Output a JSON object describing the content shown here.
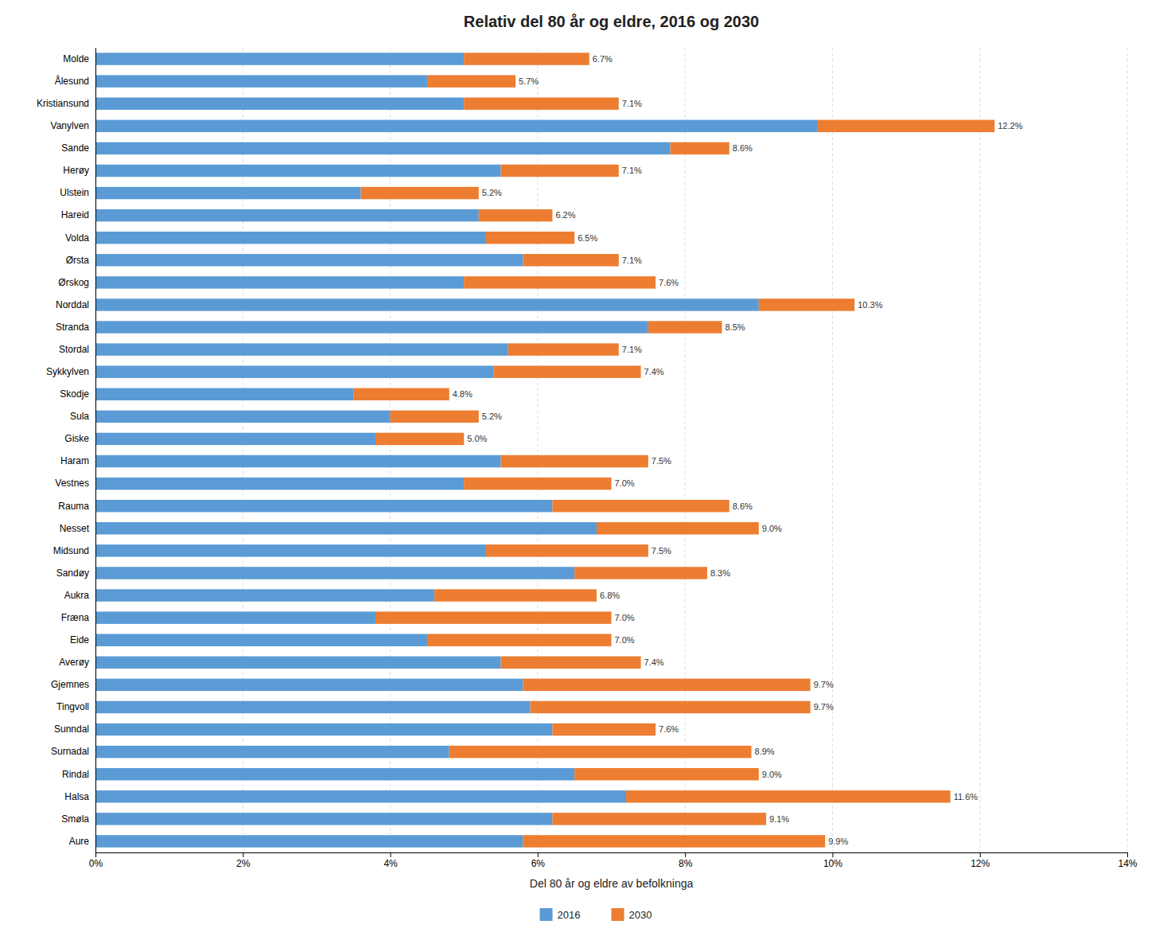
{
  "chart_data": {
    "type": "bar",
    "orientation": "horizontal",
    "stacked": true,
    "title": "Relativ del 80 år og eldre, 2016 og 2030",
    "xlabel": "Del 80 år og eldre av befolkninga",
    "categories": [
      "Molde",
      "Ålesund",
      "Kristiansund",
      "Vanylven",
      "Sande",
      "Herøy",
      "Ulstein",
      "Hareid",
      "Volda",
      "Ørsta",
      "Ørskog",
      "Norddal",
      "Stranda",
      "Stordal",
      "Sykkylven",
      "Skodje",
      "Sula",
      "Giske",
      "Haram",
      "Vestnes",
      "Rauma",
      "Nesset",
      "Midsund",
      "Sandøy",
      "Aukra",
      "Fræna",
      "Eide",
      "Averøy",
      "Gjemnes",
      "Tingvoll",
      "Sunndal",
      "Surnadal",
      "Rindal",
      "Halsa",
      "Smøla",
      "Aure"
    ],
    "series": [
      {
        "name": "2016",
        "color": "#5B9BD5",
        "values": [
          5.0,
          4.5,
          5.0,
          9.8,
          7.8,
          5.5,
          3.6,
          5.2,
          5.3,
          5.8,
          5.0,
          9.0,
          7.5,
          5.6,
          5.4,
          3.5,
          4.0,
          3.8,
          5.5,
          5.0,
          6.2,
          6.8,
          5.3,
          6.5,
          4.6,
          3.8,
          4.5,
          5.5,
          5.8,
          5.9,
          6.2,
          4.8,
          6.5,
          7.2,
          6.2,
          5.8
        ]
      },
      {
        "name": "2030",
        "color": "#ED7D31",
        "values": [
          1.7,
          1.2,
          2.1,
          2.4,
          0.8,
          1.6,
          1.6,
          1.0,
          1.2,
          1.3,
          2.6,
          1.3,
          1.0,
          1.5,
          2.0,
          1.3,
          1.2,
          1.2,
          2.0,
          2.0,
          2.4,
          2.2,
          2.2,
          1.8,
          2.2,
          3.2,
          2.5,
          1.9,
          3.9,
          3.8,
          1.4,
          4.1,
          2.5,
          4.4,
          2.9,
          4.1
        ]
      }
    ],
    "totals": [
      6.7,
      5.7,
      7.1,
      12.2,
      8.6,
      7.1,
      5.2,
      6.2,
      6.5,
      7.1,
      7.6,
      10.3,
      8.5,
      7.1,
      7.4,
      4.8,
      5.2,
      5.0,
      7.5,
      7.0,
      8.6,
      9.0,
      7.5,
      8.3,
      6.8,
      7.0,
      7.0,
      7.4,
      9.7,
      9.7,
      7.6,
      8.9,
      9.0,
      11.6,
      9.1,
      9.9
    ],
    "total_labels": [
      "6.7%",
      "5.7%",
      "7.1%",
      "12.2%",
      "8.6%",
      "7.1%",
      "5.2%",
      "6.2%",
      "6.5%",
      "7.1%",
      "7.6%",
      "10.3%",
      "8.5%",
      "7.1%",
      "7.4%",
      "4.8%",
      "5.2%",
      "5.0%",
      "7.5%",
      "7.0%",
      "8.6%",
      "9.0%",
      "7.5%",
      "8.3%",
      "6.8%",
      "7.0%",
      "7.0%",
      "7.4%",
      "9.7%",
      "9.7%",
      "7.6%",
      "8.9%",
      "9.0%",
      "11.6%",
      "9.1%",
      "9.9%"
    ],
    "xlim": [
      0,
      14
    ],
    "xticks": [
      {
        "value": 0,
        "label": "0%"
      },
      {
        "value": 2,
        "label": "2%"
      },
      {
        "value": 4,
        "label": "4%"
      },
      {
        "value": 6,
        "label": "6%"
      },
      {
        "value": 8,
        "label": "8%"
      },
      {
        "value": 10,
        "label": "10%"
      },
      {
        "value": 12,
        "label": "12%"
      },
      {
        "value": 14,
        "label": "14%"
      }
    ],
    "grid": true,
    "legend": "bottom"
  }
}
